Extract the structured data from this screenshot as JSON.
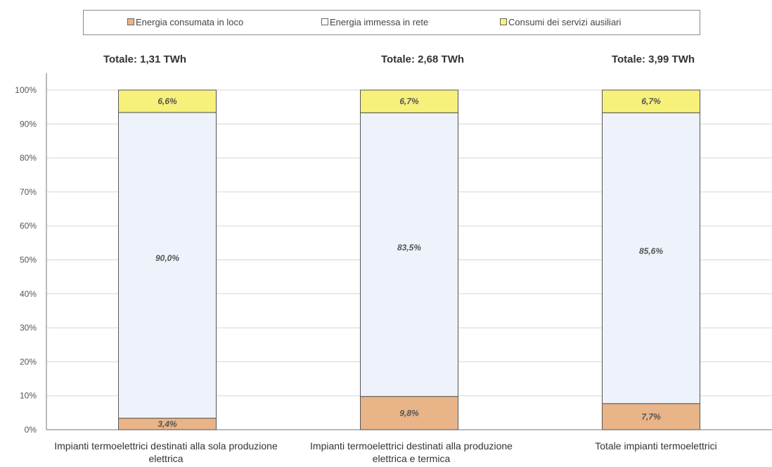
{
  "chart_data": {
    "type": "bar",
    "stacked": true,
    "percent": true,
    "categories": [
      "Impianti termoelettrici destinati alla sola produzione elettrica",
      "Impianti termoelettrici destinati alla produzione elettrica e termica",
      "Totale impianti termoelettrici"
    ],
    "totals": [
      "Totale: 1,31 TWh",
      "Totale: 2,68 TWh",
      "Totale: 3,99 TWh"
    ],
    "series": [
      {
        "name": "Energia consumata in loco",
        "color": "#e9b487",
        "values": [
          3.4,
          9.8,
          7.7
        ],
        "labels": [
          "3,4%",
          "9,8%",
          "7,7%"
        ]
      },
      {
        "name": "Energia immessa in rete",
        "color": "#edf2fb",
        "values": [
          90.0,
          83.5,
          85.6
        ],
        "labels": [
          "90,0%",
          "83,5%",
          "85,6%"
        ]
      },
      {
        "name": "Consumi dei servizi ausiliari",
        "color": "#f7f07a",
        "values": [
          6.6,
          6.7,
          6.7
        ],
        "labels": [
          "6,6%",
          "6,7%",
          "6,7%"
        ]
      }
    ],
    "yticks": [
      "0%",
      "10%",
      "20%",
      "30%",
      "40%",
      "50%",
      "60%",
      "70%",
      "80%",
      "90%",
      "100%"
    ],
    "ylim": [
      0,
      100
    ],
    "grid": true,
    "legend_position": "top"
  }
}
